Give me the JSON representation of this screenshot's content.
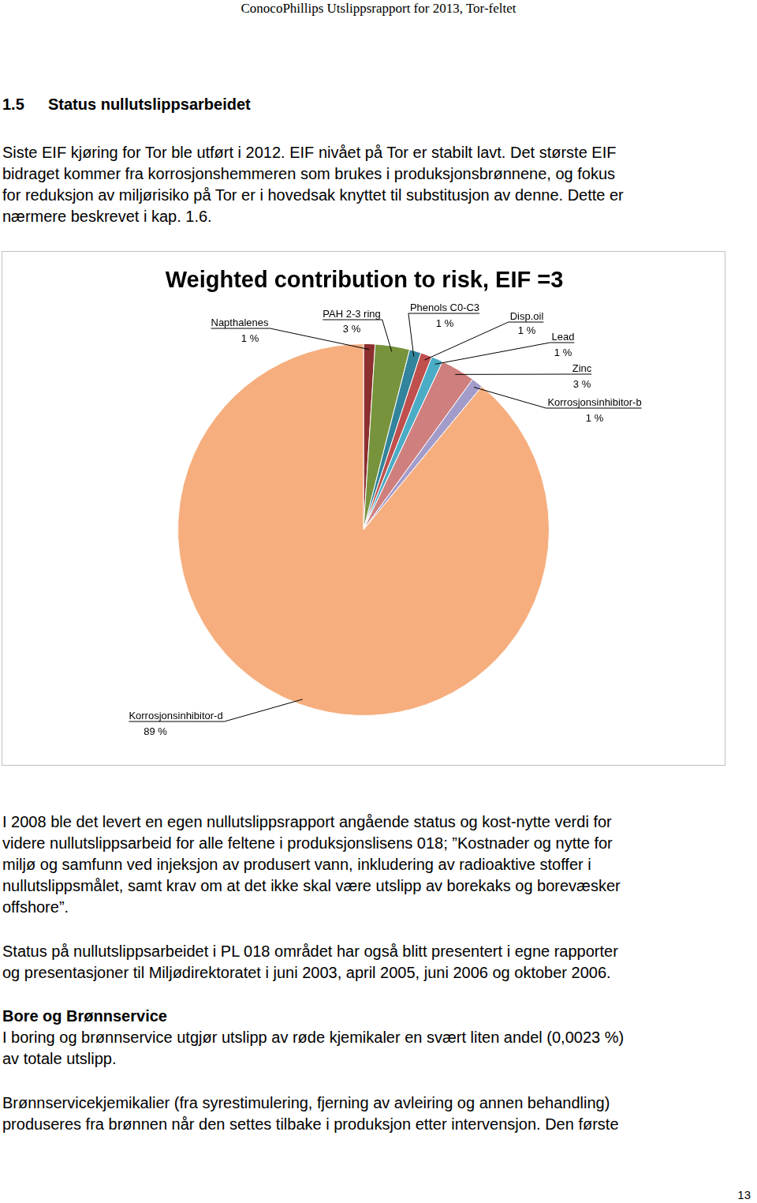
{
  "header": "ConocoPhillips Utslippsrapport for 2013, Tor-feltet",
  "section": {
    "number": "1.5",
    "title": "Status nullutslippsarbeidet"
  },
  "paragraphs_before": [
    [
      "Siste EIF kjøring for Tor ble utført i 2012. EIF nivået på Tor er stabilt lavt. Det største EIF",
      "bidraget kommer fra korrosjonshemmeren som brukes i produksjonsbrønnene, og fokus",
      "for reduksjon av miljørisiko på Tor er i hovedsak knyttet til substitusjon av denne. Dette er",
      "nærmere beskrevet i kap. 1.6."
    ]
  ],
  "chart_data": {
    "type": "pie",
    "title": "Weighted contribution to risk, EIF =3",
    "categories": [
      "Napthalenes",
      "PAH 2-3 ring",
      "Phenols C0-C3",
      "Disp.oil",
      "Lead",
      "Zinc",
      "Korrosjonsinhibitor-b",
      "Korrosjonsinhibitor-d"
    ],
    "values": [
      1,
      3,
      1,
      1,
      1,
      3,
      1,
      89
    ],
    "value_labels": [
      "1 %",
      "3 %",
      "1 %",
      "1 %",
      "1 %",
      "3 %",
      "1 %",
      "89 %"
    ],
    "colors": [
      "#8c2f2f",
      "#77933c",
      "#31849b",
      "#c0504d",
      "#4bacc6",
      "#cf7f7d",
      "#a39ccb",
      "#f6ae7e"
    ],
    "data_labels": true
  },
  "paragraphs_after": [
    [
      "I 2008 ble det levert en egen nullutslippsrapport angående status og kost-nytte verdi for",
      "videre nullutslippsarbeid for alle feltene i produksjonslisens 018; ”Kostnader og nytte for",
      "miljø og samfunn ved injeksjon av produsert vann, inkludering av radioaktive stoffer i",
      "nullutslippsmålet, samt krav om at det ikke skal være utslipp av borekaks og borevæsker",
      "offshore”."
    ],
    [
      "Status på nullutslippsarbeidet i PL 018 området har også blitt presentert i egne rapporter",
      "og presentasjoner til Miljødirektoratet i juni 2003, april 2005, juni 2006 og oktober 2006."
    ]
  ],
  "subsection": {
    "title": "Bore og Brønnservice",
    "paragraphs": [
      [
        "I boring og brønnservice utgjør utslipp av røde kjemikaler en svært liten andel (0,0023 %)",
        "av totale utslipp."
      ],
      [
        "Brønnservicekjemikalier (fra syrestimulering, fjerning av avleiring og annen behandling)",
        "produseres fra brønnen når den settes tilbake i produksjon etter intervensjon. Den første"
      ]
    ]
  },
  "page_number": "13"
}
